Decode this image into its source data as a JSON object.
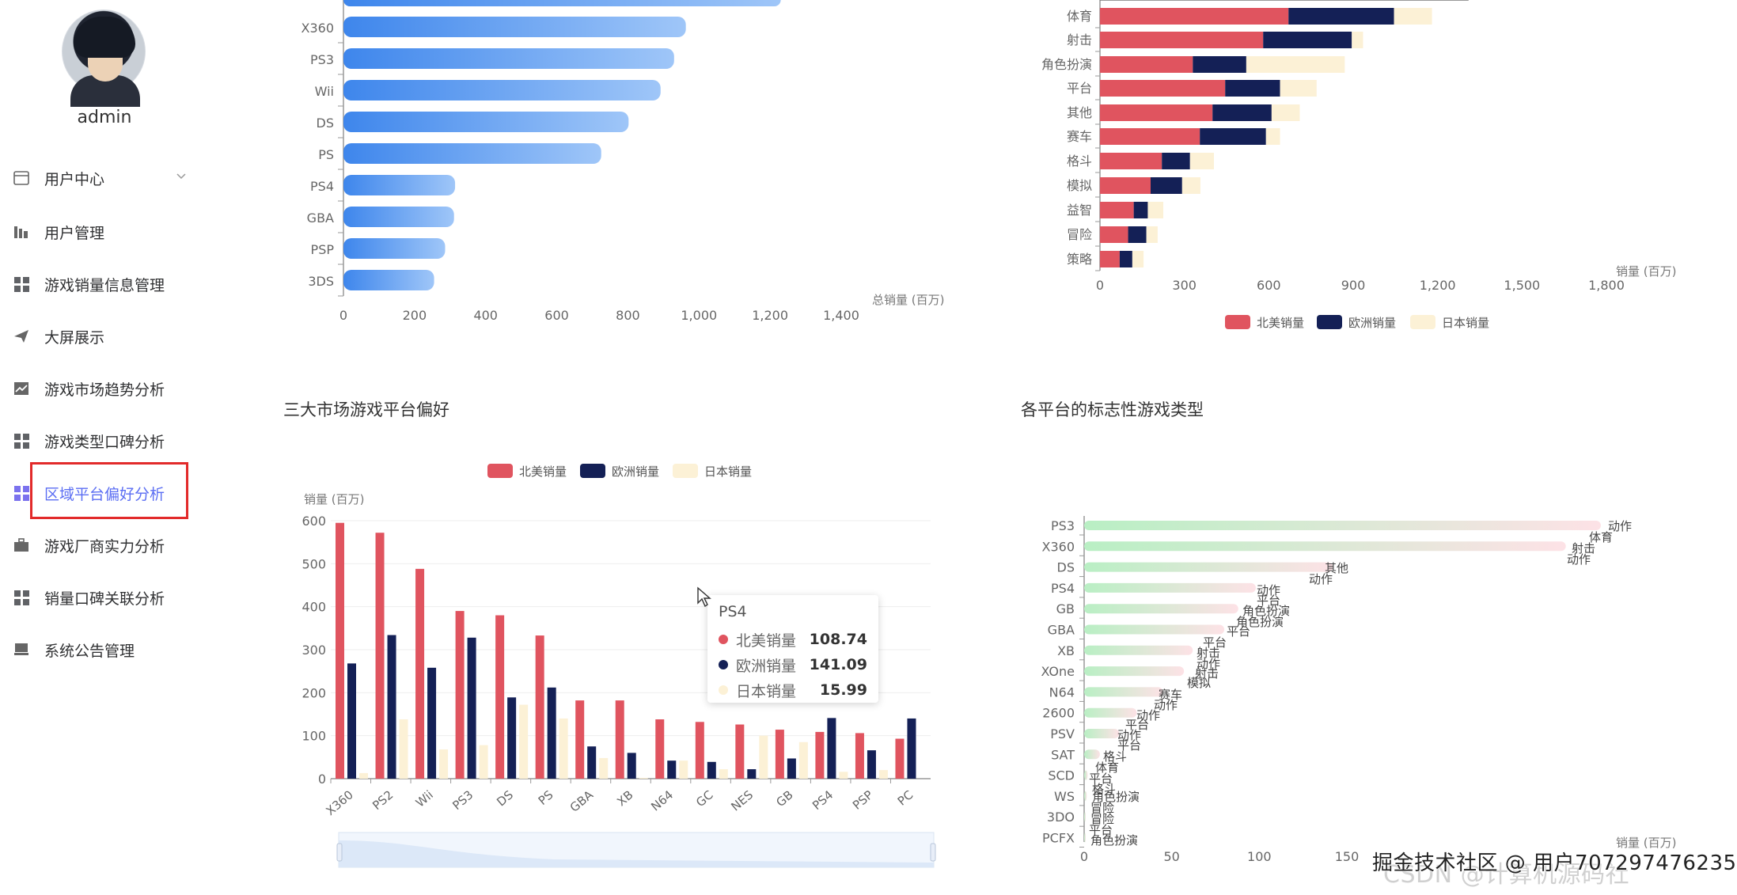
{
  "user": {
    "name": "admin"
  },
  "sidebar": {
    "items": [
      {
        "label": "用户中心",
        "icon": "window-icon",
        "has_chevron": true
      },
      {
        "label": "用户管理",
        "icon": "bar-icon"
      },
      {
        "label": "游戏销量信息管理",
        "icon": "grid-icon"
      },
      {
        "label": "大屏展示",
        "icon": "send-icon"
      },
      {
        "label": "游戏市场趋势分析",
        "icon": "trend-icon"
      },
      {
        "label": "游戏类型口碑分析",
        "icon": "grid-icon"
      },
      {
        "label": "区域平台偏好分析",
        "icon": "grid-icon",
        "active": true
      },
      {
        "label": "游戏厂商实力分析",
        "icon": "briefcase-icon"
      },
      {
        "label": "销量口碑关联分析",
        "icon": "grid-icon"
      },
      {
        "label": "系统公告管理",
        "icon": "monitor-icon"
      }
    ]
  },
  "colors": {
    "na": "#e0545f",
    "eu": "#142056",
    "jp": "#fcf1d6",
    "blue": "#4a90ee",
    "accent": "#5b6ef3"
  },
  "chart_data": [
    {
      "id": "platform-total",
      "type": "bar",
      "orientation": "horizontal",
      "categories": [
        "X360",
        "PS3",
        "Wii",
        "DS",
        "PS",
        "PS4",
        "GBA",
        "PSP",
        "3DS"
      ],
      "values": [
        963,
        930,
        892,
        802,
        725,
        314,
        311,
        286,
        255
      ],
      "partial_top_bar_value": 1230,
      "xlabel": "总销量 (百万)",
      "xticks": [
        "0",
        "200",
        "400",
        "600",
        "800",
        "1,000",
        "1,200",
        "1,400"
      ],
      "xlim": [
        0,
        1400
      ]
    },
    {
      "id": "genre-region",
      "type": "bar",
      "orientation": "horizontal",
      "stacked": true,
      "categories": [
        "体育",
        "射击",
        "角色扮演",
        "平台",
        "其他",
        "赛车",
        "格斗",
        "模拟",
        "益智",
        "冒险",
        "策略"
      ],
      "series": [
        {
          "name": "北美销量",
          "values": [
            670,
            580,
            330,
            445,
            400,
            355,
            220,
            180,
            120,
            100,
            70
          ]
        },
        {
          "name": "欧洲销量",
          "values": [
            375,
            315,
            190,
            195,
            210,
            235,
            100,
            112,
            50,
            65,
            45
          ]
        },
        {
          "name": "日本销量",
          "values": [
            135,
            40,
            350,
            130,
            100,
            50,
            85,
            65,
            55,
            40,
            40
          ]
        }
      ],
      "xlabel": "销量 (百万)",
      "xticks": [
        "0",
        "300",
        "600",
        "900",
        "1,200",
        "1,500",
        "1,800"
      ],
      "xlim": [
        0,
        1800
      ],
      "legend": [
        "北美销量",
        "欧洲销量",
        "日本销量"
      ],
      "legend_position": "bottom"
    },
    {
      "id": "market-platform",
      "type": "bar",
      "title": "三大市场游戏平台偏好",
      "categories": [
        "X360",
        "PS2",
        "Wii",
        "PS3",
        "DS",
        "PS",
        "GBA",
        "XB",
        "N64",
        "GC",
        "NES",
        "GB",
        "PS4",
        "PSP",
        "PC"
      ],
      "series": [
        {
          "name": "北美销量",
          "values": [
            595,
            572,
            488,
            390,
            380,
            333,
            182,
            182,
            138,
            132,
            126,
            114,
            108.74,
            106,
            93
          ]
        },
        {
          "name": "欧洲销量",
          "values": [
            268,
            334,
            258,
            328,
            189,
            212,
            75,
            60,
            42,
            39,
            22,
            47,
            141.09,
            66,
            140
          ]
        },
        {
          "name": "日本销量",
          "values": [
            13,
            138,
            68,
            78,
            172,
            140,
            48,
            2,
            42,
            22,
            100,
            85,
            15.99,
            20,
            0
          ]
        }
      ],
      "ylabel": "销量 (百万)",
      "yticks": [
        "0",
        "100",
        "200",
        "300",
        "400",
        "500",
        "600"
      ],
      "ylim": [
        0,
        600
      ],
      "legend": [
        "北美销量",
        "欧洲销量",
        "日本销量"
      ],
      "legend_position": "top",
      "tooltip": {
        "title": "PS4",
        "rows": [
          {
            "name": "北美销量",
            "value": "108.74"
          },
          {
            "name": "欧洲销量",
            "value": "141.09"
          },
          {
            "name": "日本销量",
            "value": "15.99"
          }
        ]
      },
      "data_zoom": true
    },
    {
      "id": "platform-genre",
      "type": "bar",
      "orientation": "horizontal",
      "title": "各平台的标志性游戏类型",
      "categories": [
        "PS3",
        "X360",
        "DS",
        "PS4",
        "GB",
        "GBA",
        "XB",
        "XOne",
        "N64",
        "2600",
        "PSV",
        "SAT",
        "SCD",
        "WS",
        "3DO",
        "PCFX"
      ],
      "values": [
        295,
        275,
        142,
        98,
        88,
        80,
        62,
        57,
        45,
        30,
        20,
        9,
        2,
        1.5,
        0.5,
        0.3
      ],
      "labels": [
        [
          "动作",
          "体育",
          "射击",
          "动作"
        ],
        [
          "其他",
          "动作"
        ],
        [
          "动作",
          "平台",
          "角色扮演",
          "角色扮演"
        ],
        [
          "平台",
          "平台"
        ],
        [
          "射击",
          "动作",
          "射击",
          "模拟"
        ],
        [
          "赛车",
          "动作"
        ],
        [
          "动作",
          "平台",
          "动作",
          "平台"
        ],
        [
          "格斗"
        ],
        [
          "体育",
          "平台",
          "格斗"
        ],
        [
          "角色扮演",
          "冒险"
        ],
        [
          "冒险",
          "平台",
          "角色扮演"
        ]
      ],
      "xlabel": "销量 (百万)",
      "xticks": [
        "0",
        "50",
        "100",
        "150"
      ],
      "xlim": [
        0,
        300
      ]
    }
  ],
  "watermark": {
    "text": "掘金技术社区 @ 用户707297476235",
    "back_text": "CSDN @计算机源码社"
  }
}
